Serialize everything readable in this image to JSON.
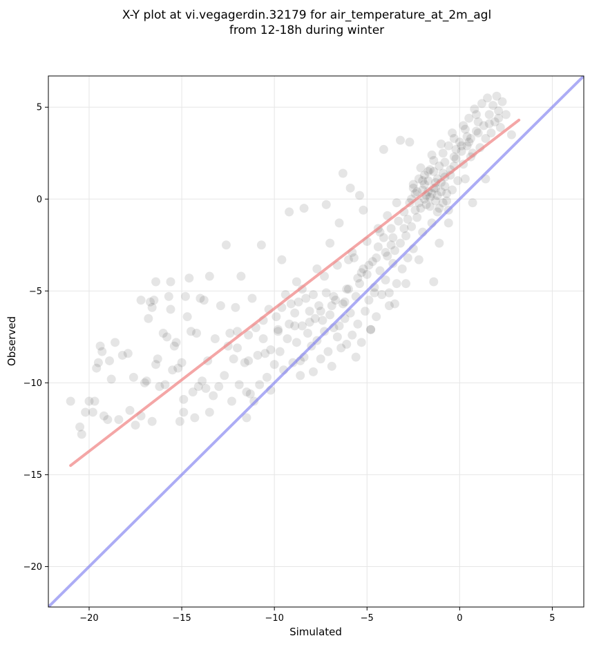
{
  "chart_data": {
    "type": "scatter",
    "title": [
      "X-Y plot at vi.vegagerdin.32179 for air_temperature_at_2m_agl",
      "from 12-18h during winter"
    ],
    "xlabel": "Simulated",
    "ylabel": "Observed",
    "xlim": [
      -22.2,
      6.7
    ],
    "ylim": [
      -22.2,
      6.7
    ],
    "xticks": [
      -20,
      -15,
      -10,
      -5,
      0,
      5
    ],
    "yticks": [
      -20,
      -15,
      -10,
      -5,
      0,
      5
    ],
    "tick_labels": [
      "−20",
      "−15",
      "−10",
      "−5",
      "0",
      "5"
    ],
    "grid": true,
    "colors": {
      "points": "#000000",
      "fit": "#f08080",
      "identity": "#8080f0"
    },
    "fit_line": {
      "x": [
        -21,
        3.2
      ],
      "y": [
        -14.5,
        4.3
      ]
    },
    "identity_line": {
      "x": [
        -22.2,
        6.7
      ],
      "y": [
        -22.2,
        6.7
      ]
    },
    "points": [
      [
        -21,
        -11
      ],
      [
        -20.5,
        -12.4
      ],
      [
        -20.4,
        -12.8
      ],
      [
        -20.2,
        -11.6
      ],
      [
        -20,
        -11
      ],
      [
        -19.8,
        -11.6
      ],
      [
        -19.6,
        -9.2
      ],
      [
        -19.5,
        -8.9
      ],
      [
        -19.4,
        -8
      ],
      [
        -19.3,
        -8.3
      ],
      [
        -19.2,
        -11.8
      ],
      [
        -19,
        -12
      ],
      [
        -18.8,
        -9.8
      ],
      [
        -18.6,
        -7.8
      ],
      [
        -18.4,
        -12
      ],
      [
        -18.2,
        -8.5
      ],
      [
        -17.9,
        -8.4
      ],
      [
        -17.8,
        -11.5
      ],
      [
        -17.6,
        -9.7
      ],
      [
        -17.5,
        -12.3
      ],
      [
        -17.2,
        -11.8
      ],
      [
        -17,
        -10
      ],
      [
        -16.9,
        -9.9
      ],
      [
        -16.8,
        -6.5
      ],
      [
        -16.7,
        -5.6
      ],
      [
        -16.6,
        -5.9
      ],
      [
        -16.5,
        -5.5
      ],
      [
        -16.4,
        -9
      ],
      [
        -16.2,
        -10.2
      ],
      [
        -16.3,
        -8.7
      ],
      [
        -16.6,
        -12.1
      ],
      [
        -16,
        -7.3
      ],
      [
        -15.9,
        -10.1
      ],
      [
        -15.8,
        -7.5
      ],
      [
        -15.7,
        -5.3
      ],
      [
        -15.6,
        -4.5
      ],
      [
        -15.5,
        -9.3
      ],
      [
        -15.4,
        -8
      ],
      [
        -15.3,
        -7.8
      ],
      [
        -15.2,
        -9.2
      ],
      [
        -15.1,
        -12.1
      ],
      [
        -15,
        -8.9
      ],
      [
        -14.9,
        -10.9
      ],
      [
        -14.8,
        -5.3
      ],
      [
        -14.7,
        -6.4
      ],
      [
        -14.6,
        -4.3
      ],
      [
        -14.5,
        -7.2
      ],
      [
        -14.4,
        -10.5
      ],
      [
        -14.3,
        -11.9
      ],
      [
        -14.2,
        -7.3
      ],
      [
        -14.1,
        -10.2
      ],
      [
        -14,
        -5.4
      ],
      [
        -13.9,
        -9.9
      ],
      [
        -13.8,
        -5.5
      ],
      [
        -13.7,
        -10.3
      ],
      [
        -13.6,
        -8.8
      ],
      [
        -13.5,
        -11.6
      ],
      [
        -13.3,
        -10.7
      ],
      [
        -13.2,
        -7.6
      ],
      [
        -13,
        -10.2
      ],
      [
        -12.9,
        -5.8
      ],
      [
        -12.7,
        -9.6
      ],
      [
        -12.5,
        -8
      ],
      [
        -12.4,
        -7.3
      ],
      [
        -12.3,
        -11
      ],
      [
        -12.2,
        -8.7
      ],
      [
        -12.1,
        -5.9
      ],
      [
        -12,
        -7.2
      ],
      [
        -11.9,
        -10.1
      ],
      [
        -11.8,
        -4.2
      ],
      [
        -11.6,
        -8.9
      ],
      [
        -11.5,
        -10.5
      ],
      [
        -11.4,
        -8.8
      ],
      [
        -11.3,
        -10.6
      ],
      [
        -11.2,
        -5.4
      ],
      [
        -11,
        -7
      ],
      [
        -10.9,
        -8.5
      ],
      [
        -10.8,
        -10.1
      ],
      [
        -10.7,
        -2.5
      ],
      [
        -10.6,
        -7.6
      ],
      [
        -10.5,
        -8.4
      ],
      [
        -10.4,
        -9.7
      ],
      [
        -10.3,
        -6
      ],
      [
        -10.2,
        -8.2
      ],
      [
        -10,
        -9
      ],
      [
        -9.9,
        -6.4
      ],
      [
        -9.8,
        -7.1
      ],
      [
        -9.7,
        -8.3
      ],
      [
        -9.6,
        -5.9
      ],
      [
        -9.5,
        -9.3
      ],
      [
        -9.4,
        -5.2
      ],
      [
        -9.3,
        -7.6
      ],
      [
        -9.2,
        -6.8
      ],
      [
        -9,
        -8.9
      ],
      [
        -8.9,
        -6.2
      ],
      [
        -8.8,
        -7.8
      ],
      [
        -8.7,
        -5.6
      ],
      [
        -8.6,
        -9.6
      ],
      [
        -8.5,
        -6.9
      ],
      [
        -8.4,
        -8.6
      ],
      [
        -8.3,
        -5.4
      ],
      [
        -8.2,
        -7.3
      ],
      [
        -8.1,
        -6.1
      ],
      [
        -8,
        -8
      ],
      [
        -7.9,
        -9.4
      ],
      [
        -7.8,
        -6.5
      ],
      [
        -7.7,
        -7.7
      ],
      [
        -7.6,
        -5.8
      ],
      [
        -7.5,
        -8.7
      ],
      [
        -7.4,
        -6.6
      ],
      [
        -7.3,
        -7.2
      ],
      [
        -7.2,
        -5.1
      ],
      [
        -7.1,
        -8.3
      ],
      [
        -7,
        -6.3
      ],
      [
        -6.9,
        -9.1
      ],
      [
        -6.8,
        -7
      ],
      [
        -6.7,
        -5.5
      ],
      [
        -6.6,
        -7.5
      ],
      [
        -6.5,
        -6.9
      ],
      [
        -6.4,
        -8.1
      ],
      [
        -6.3,
        -5.7
      ],
      [
        -6.2,
        -6.5
      ],
      [
        -6.1,
        -7.9
      ],
      [
        -6,
        -4.9
      ],
      [
        -5.9,
        -6.2
      ],
      [
        -5.8,
        -7.4
      ],
      [
        -5.7,
        -3.2
      ],
      [
        -5.6,
        -5.3
      ],
      [
        -5.5,
        -6.8
      ],
      [
        -5.4,
        -4.6
      ],
      [
        -5.3,
        -7.8
      ],
      [
        -5.2,
        -3.8
      ],
      [
        -5.1,
        -6.1
      ],
      [
        -5,
        -4.1
      ],
      [
        -4.9,
        -5.5
      ],
      [
        -4.8,
        -7.1
      ],
      [
        -4.7,
        -3.4
      ],
      [
        -4.6,
        -4.8
      ],
      [
        -4.5,
        -6.4
      ],
      [
        -4.4,
        -2.6
      ],
      [
        -4.3,
        -3.9
      ],
      [
        -4.2,
        -5.2
      ],
      [
        -4.1,
        -2.1
      ],
      [
        -4,
        -4.4
      ],
      [
        -3.9,
        -3.1
      ],
      [
        -3.8,
        -5.8
      ],
      [
        -3.7,
        -1.6
      ],
      [
        -3.6,
        -3.5
      ],
      [
        -3.5,
        -2.8
      ],
      [
        -3.4,
        -4.6
      ],
      [
        -3.3,
        -1.2
      ],
      [
        -3.2,
        -2.4
      ],
      [
        -3.1,
        -3.8
      ],
      [
        -3,
        -0.7
      ],
      [
        -2.9,
        -2.0
      ],
      [
        -2.8,
        -3.2
      ],
      [
        -2.7,
        -0.2
      ],
      [
        -2.6,
        -1.5
      ],
      [
        -2.5,
        -2.7
      ],
      [
        -2.4,
        0.3
      ],
      [
        -2.3,
        -1.0
      ],
      [
        -2.2,
        1.1
      ],
      [
        -2.1,
        -0.5
      ],
      [
        -2,
        -1.8
      ],
      [
        -1.9,
        0.8
      ],
      [
        -1.8,
        -0.3
      ],
      [
        -1.7,
        1.5
      ],
      [
        -1.6,
        0.1
      ],
      [
        -1.5,
        -1.3
      ],
      [
        -1.4,
        2.1
      ],
      [
        -1.3,
        0.6
      ],
      [
        -1.2,
        -0.7
      ],
      [
        -1.1,
        1.8
      ],
      [
        -1,
        0.4
      ],
      [
        -0.9,
        2.5
      ],
      [
        -0.8,
        1.2
      ],
      [
        -0.7,
        -0.1
      ],
      [
        -0.6,
        2.9
      ],
      [
        -0.5,
        1.6
      ],
      [
        -0.4,
        0.5
      ],
      [
        -0.3,
        3.3
      ],
      [
        -0.2,
        2.2
      ],
      [
        -0.1,
        1.0
      ],
      [
        0,
        3.1
      ],
      [
        0.1,
        2.6
      ],
      [
        0.2,
        1.9
      ],
      [
        0.3,
        3.8
      ],
      [
        0.4,
        2.9
      ],
      [
        0.5,
        4.4
      ],
      [
        0.6,
        3.3
      ],
      [
        0.7,
        2.5
      ],
      [
        0.8,
        4.9
      ],
      [
        0.9,
        3.7
      ],
      [
        1,
        4.2
      ],
      [
        1.1,
        2.8
      ],
      [
        1.2,
        5.2
      ],
      [
        1.3,
        4.0
      ],
      [
        1.4,
        3.3
      ],
      [
        1.5,
        5.5
      ],
      [
        1.6,
        4.6
      ],
      [
        1.7,
        3.6
      ],
      [
        1.8,
        5.1
      ],
      [
        1.9,
        4.2
      ],
      [
        2,
        5.6
      ],
      [
        2.1,
        4.8
      ],
      [
        2.2,
        3.9
      ],
      [
        2.3,
        5.3
      ],
      [
        2.5,
        4.6
      ],
      [
        2.8,
        3.5
      ],
      [
        -9.2,
        -0.7
      ],
      [
        -8.4,
        -0.5
      ],
      [
        -7.2,
        -0.3
      ],
      [
        -6.3,
        1.4
      ],
      [
        -5.9,
        0.6
      ],
      [
        -5.4,
        0.2
      ],
      [
        -3.2,
        3.2
      ],
      [
        -2.7,
        3.1
      ],
      [
        -4.1,
        2.7
      ],
      [
        -1.4,
        -4.5
      ],
      [
        -4.8,
        -7.1
      ],
      [
        -5.6,
        -8.6
      ],
      [
        -3.5,
        -5.7
      ],
      [
        -2.2,
        -3.3
      ],
      [
        -0.6,
        -1.3
      ],
      [
        0.3,
        1.1
      ],
      [
        1.4,
        1.1
      ],
      [
        -10.2,
        -10.4
      ],
      [
        -8.6,
        -8.8
      ],
      [
        -12.6,
        -2.5
      ],
      [
        -15.6,
        -6.0
      ],
      [
        -16.4,
        -4.5
      ],
      [
        -17.2,
        -5.5
      ],
      [
        -18.9,
        -8.8
      ],
      [
        -19.7,
        -11.0
      ],
      [
        -14.9,
        -11.6
      ],
      [
        -13.5,
        -4.2
      ],
      [
        -11.5,
        -11.9
      ],
      [
        -11.1,
        -11.0
      ],
      [
        -3.8,
        -5.1
      ],
      [
        -2.9,
        -4.6
      ],
      [
        -1.1,
        -2.4
      ],
      [
        0.7,
        -0.2
      ],
      [
        -4.6,
        -5.1
      ],
      [
        -6.2,
        -5.6
      ],
      [
        -7.7,
        -3.8
      ],
      [
        -8.8,
        -4.5
      ],
      [
        -9.6,
        -3.3
      ],
      [
        -7,
        -2.4
      ],
      [
        -6.5,
        -1.3
      ],
      [
        -5.2,
        -0.6
      ],
      [
        -4.4,
        -1.6
      ],
      [
        -3.9,
        -0.9
      ],
      [
        -3.4,
        -0.2
      ],
      [
        -2.5,
        0.8
      ],
      [
        -2.1,
        1.7
      ],
      [
        -1.5,
        2.4
      ],
      [
        -1.0,
        3.0
      ],
      [
        -0.4,
        3.6
      ],
      [
        0.2,
        4.0
      ],
      [
        0.9,
        4.6
      ],
      [
        -1.8,
        0.2
      ],
      [
        -1.6,
        -0.4
      ],
      [
        -1.3,
        0.9
      ],
      [
        -0.9,
        -0.2
      ],
      [
        -2.4,
        -0.6
      ],
      [
        -2.0,
        0.5
      ],
      [
        -1.7,
        1.0
      ],
      [
        -1.2,
        0.2
      ],
      [
        -0.8,
        0.7
      ],
      [
        -0.5,
        1.3
      ],
      [
        -2.6,
        0.0
      ],
      [
        -1.9,
        1.3
      ],
      [
        -1.4,
        0.6
      ],
      [
        -1.1,
        -0.5
      ],
      [
        -0.7,
        0.3
      ],
      [
        -2.3,
        0.4
      ],
      [
        -1.6,
        1.6
      ],
      [
        -1.2,
        1.1
      ],
      [
        -0.6,
        -0.6
      ],
      [
        -2.8,
        -1.1
      ],
      [
        -3.6,
        -2.1
      ],
      [
        -4.0,
        -2.9
      ],
      [
        -4.9,
        -3.6
      ],
      [
        -5.5,
        -4.3
      ],
      [
        -6.1,
        -4.9
      ],
      [
        -6.8,
        -5.3
      ],
      [
        -7.5,
        -6.1
      ],
      [
        -8.1,
        -6.7
      ],
      [
        -8.9,
        -6.9
      ],
      [
        -9.8,
        -7.2
      ],
      [
        -10.6,
        -6.6
      ],
      [
        -11.4,
        -7.4
      ],
      [
        -12.0,
        -8.1
      ],
      [
        -7.3,
        -4.2
      ],
      [
        -6.6,
        -3.6
      ],
      [
        -5.8,
        -2.9
      ],
      [
        -5.0,
        -2.3
      ],
      [
        -4.3,
        -1.8
      ],
      [
        -7.9,
        -5.2
      ],
      [
        -8.5,
        -4.9
      ],
      [
        -9.1,
        -5.7
      ],
      [
        -6.9,
        -5.8
      ],
      [
        -6.0,
        -3.3
      ],
      [
        -5.3,
        -4.0
      ],
      [
        -4.5,
        -3.2
      ],
      [
        -3.7,
        -2.5
      ],
      [
        -3.0,
        -1.6
      ],
      [
        -0.2,
        2.7
      ],
      [
        0.4,
        3.4
      ],
      [
        1.0,
        3.6
      ],
      [
        1.6,
        4.1
      ],
      [
        2.1,
        4.4
      ],
      [
        -0.3,
        1.8
      ],
      [
        0.6,
        2.3
      ],
      [
        -1.9,
        0.0
      ],
      [
        -1.5,
        0.3
      ],
      [
        -1.0,
        0.9
      ],
      [
        -2.2,
        -0.2
      ],
      [
        -1.7,
        0.4
      ],
      [
        -1.3,
        -0.1
      ],
      [
        -0.9,
        1.4
      ],
      [
        -2.5,
        0.6
      ],
      [
        -2.0,
        1.0
      ],
      [
        -1.4,
        1.5
      ],
      [
        -0.8,
        2.0
      ],
      [
        -0.3,
        2.3
      ],
      [
        0.1,
        2.9
      ],
      [
        0.5,
        3.1
      ]
    ]
  }
}
